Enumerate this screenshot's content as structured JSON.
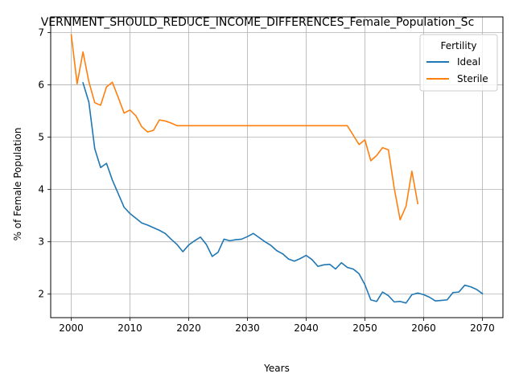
{
  "chart_data": {
    "type": "line",
    "title": "VERNMENT_SHOULD_REDUCE_INCOME_DIFFERENCES_Female_Population_Sc",
    "xlabel": "Years",
    "ylabel": "% of Female Population",
    "xlim": [
      1996.5,
      2073.5
    ],
    "ylim": [
      1.55,
      7.3
    ],
    "x_ticks": [
      2000,
      2010,
      2020,
      2030,
      2040,
      2050,
      2060,
      2070
    ],
    "y_ticks": [
      2,
      3,
      4,
      5,
      6,
      7
    ],
    "grid": true,
    "legend": {
      "title": "Fertility",
      "placement": "top-right"
    },
    "series": [
      {
        "name": "Ideal",
        "color": "#1f77b4",
        "x": [
          2002,
          2003,
          2004,
          2005,
          2006,
          2007,
          2008,
          2009,
          2010,
          2011,
          2012,
          2013,
          2014,
          2015,
          2016,
          2017,
          2018,
          2019,
          2020,
          2021,
          2022,
          2023,
          2024,
          2025,
          2026,
          2027,
          2028,
          2029,
          2030,
          2031,
          2032,
          2033,
          2034,
          2035,
          2036,
          2037,
          2038,
          2039,
          2040,
          2041,
          2042,
          2043,
          2044,
          2045,
          2046,
          2047,
          2048,
          2049,
          2050,
          2051,
          2052,
          2053,
          2054,
          2055,
          2056,
          2057,
          2058,
          2059,
          2060,
          2061,
          2062,
          2063,
          2064,
          2065,
          2066,
          2067,
          2068,
          2069,
          2070
        ],
        "y": [
          6.04,
          5.67,
          4.78,
          4.42,
          4.5,
          4.18,
          3.92,
          3.66,
          3.54,
          3.45,
          3.36,
          3.32,
          3.27,
          3.22,
          3.16,
          3.05,
          2.95,
          2.81,
          2.94,
          3.02,
          3.09,
          2.95,
          2.72,
          2.8,
          3.05,
          3.02,
          3.04,
          3.05,
          3.1,
          3.16,
          3.08,
          3.0,
          2.93,
          2.83,
          2.77,
          2.67,
          2.63,
          2.68,
          2.74,
          2.66,
          2.53,
          2.56,
          2.57,
          2.48,
          2.6,
          2.51,
          2.48,
          2.39,
          2.18,
          1.89,
          1.86,
          2.04,
          1.97,
          1.85,
          1.86,
          1.83,
          1.99,
          2.02,
          1.99,
          1.94,
          1.87,
          1.88,
          1.89,
          2.03,
          2.04,
          2.17,
          2.14,
          2.09,
          2.01
        ]
      },
      {
        "name": "Sterile",
        "color": "#ff7f0e",
        "x": [
          2000,
          2001,
          2002,
          2003,
          2004,
          2005,
          2006,
          2007,
          2008,
          2009,
          2010,
          2011,
          2012,
          2013,
          2014,
          2015,
          2016,
          2017,
          2018,
          2019,
          2020,
          2021,
          2022,
          2023,
          2024,
          2025,
          2026,
          2027,
          2028,
          2029,
          2030,
          2031,
          2032,
          2033,
          2034,
          2035,
          2036,
          2037,
          2038,
          2039,
          2040,
          2041,
          2042,
          2043,
          2044,
          2045,
          2046,
          2047,
          2048,
          2049,
          2050,
          2051,
          2052,
          2053,
          2054,
          2055,
          2056,
          2057,
          2058,
          2059
        ],
        "y": [
          6.96,
          6.02,
          6.63,
          6.06,
          5.66,
          5.61,
          5.96,
          6.05,
          5.76,
          5.46,
          5.52,
          5.41,
          5.2,
          5.1,
          5.13,
          5.33,
          5.31,
          5.27,
          5.22,
          5.22,
          5.22,
          5.22,
          5.22,
          5.22,
          5.22,
          5.22,
          5.22,
          5.22,
          5.22,
          5.22,
          5.22,
          5.22,
          5.22,
          5.22,
          5.22,
          5.22,
          5.22,
          5.22,
          5.22,
          5.22,
          5.22,
          5.22,
          5.22,
          5.22,
          5.22,
          5.22,
          5.22,
          5.22,
          5.04,
          4.86,
          4.95,
          4.55,
          4.65,
          4.8,
          4.76,
          4.02,
          3.42,
          3.68,
          4.35,
          3.73
        ]
      }
    ]
  }
}
